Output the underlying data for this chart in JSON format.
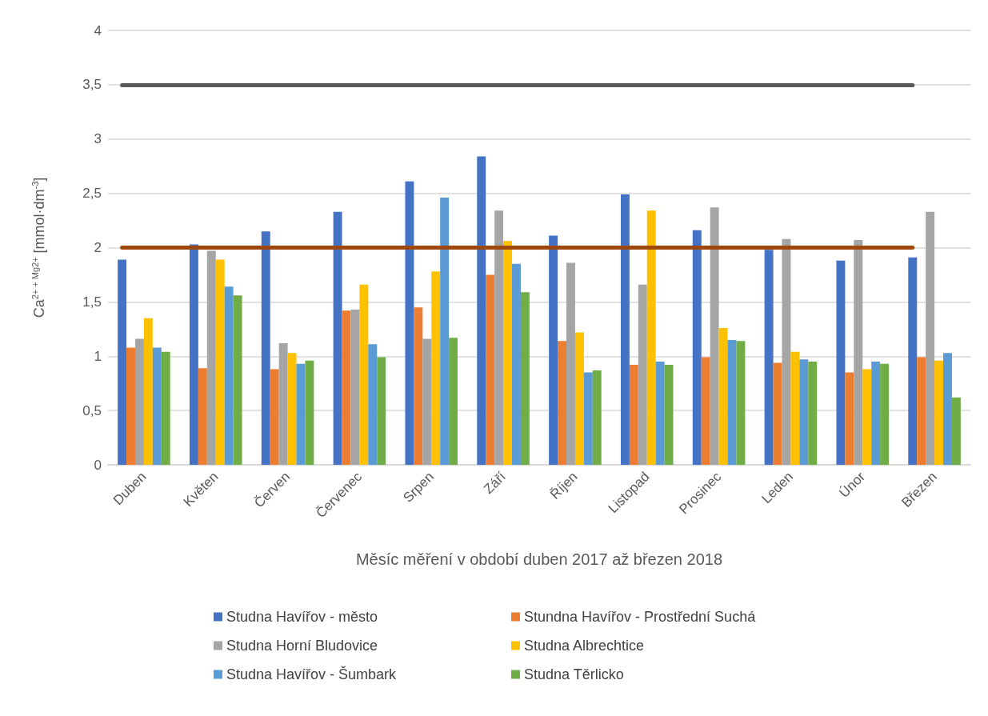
{
  "chart_data": {
    "type": "bar",
    "xlabel": "Měsíc měření v období duben 2017 až březen 2018",
    "ylabel": "Ca$^{2+ + Mg2+}$ [mmol·dm$^{-3}$]",
    "categories": [
      "Duben",
      "Květen",
      "Červen",
      "Červenec",
      "Srpen",
      "Září",
      "Říjen",
      "Listopad",
      "Prosinec",
      "Leden",
      "Únor",
      "Březen"
    ],
    "series": [
      {
        "name": "Studna Havířov - město",
        "color": "#4472c4",
        "values": [
          1.89,
          2.03,
          2.15,
          2.33,
          2.61,
          2.84,
          2.11,
          2.49,
          2.16,
          1.98,
          1.88,
          1.91
        ]
      },
      {
        "name": "Stundna Havířov - Prostřední Suchá",
        "color": "#ed7d31",
        "values": [
          1.08,
          0.89,
          0.88,
          1.42,
          1.45,
          1.75,
          1.14,
          0.92,
          0.99,
          0.94,
          0.85,
          0.99
        ]
      },
      {
        "name": "Studna Horní Bludovice",
        "color": "#a5a5a5",
        "values": [
          1.16,
          1.97,
          1.12,
          1.43,
          1.16,
          2.34,
          1.86,
          1.66,
          2.37,
          2.08,
          2.07,
          2.33
        ]
      },
      {
        "name": "Studna Albrechtice",
        "color": "#ffc000",
        "values": [
          1.35,
          1.89,
          1.03,
          1.66,
          1.78,
          2.06,
          1.22,
          2.34,
          1.26,
          1.04,
          0.88,
          0.96
        ]
      },
      {
        "name": "Studna Havířov - Šumbark",
        "color": "#5b9bd5",
        "values": [
          1.08,
          1.64,
          0.93,
          1.11,
          2.46,
          1.85,
          0.85,
          0.95,
          1.15,
          0.97,
          0.95,
          1.03
        ]
      },
      {
        "name": "Studna Těrlicko",
        "color": "#70ad47",
        "values": [
          1.04,
          1.56,
          0.96,
          0.99,
          1.17,
          1.59,
          0.87,
          0.92,
          1.14,
          0.95,
          0.93,
          0.62
        ]
      }
    ],
    "ylim": [
      0,
      4
    ],
    "yticks": [
      {
        "value": 0,
        "label": "0"
      },
      {
        "value": 0.5,
        "label": "0,5"
      },
      {
        "value": 1,
        "label": "1"
      },
      {
        "value": 1.5,
        "label": "1,5"
      },
      {
        "value": 2,
        "label": "2"
      },
      {
        "value": 2.5,
        "label": "2,5"
      },
      {
        "value": 3,
        "label": "3"
      },
      {
        "value": 3.5,
        "label": "3,5"
      },
      {
        "value": 4,
        "label": "4"
      }
    ],
    "ref_lines": [
      {
        "axis": "y",
        "value": 3.5,
        "color": "#595959"
      },
      {
        "axis": "y",
        "value": 2,
        "color": "#9e480e"
      }
    ],
    "grid": "y",
    "legend": "bottom"
  }
}
